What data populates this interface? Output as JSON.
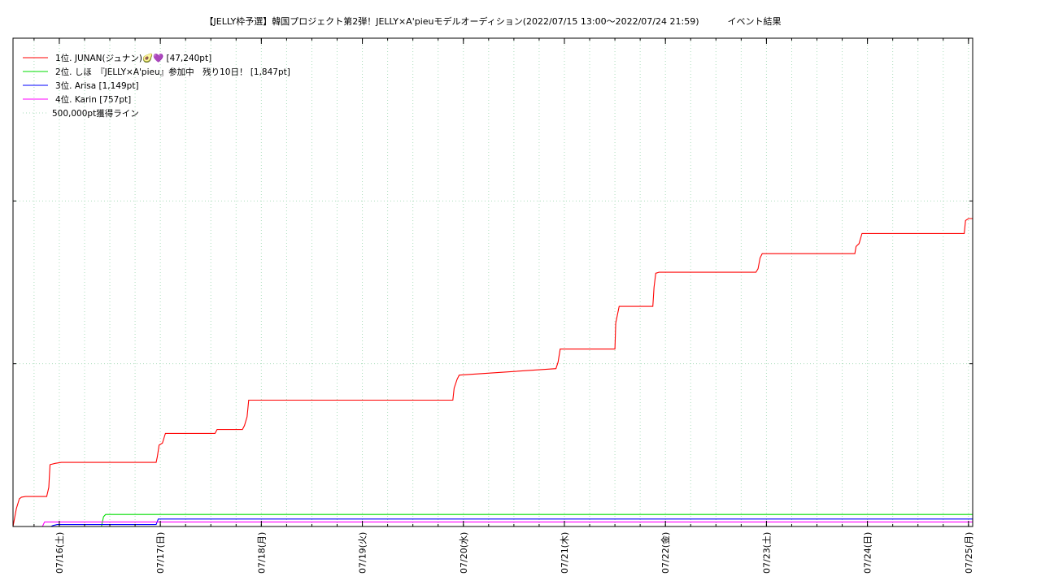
{
  "title": "【JELLY枠予選】韓国プロジェクト第2弾！JELLY×A'pieuモデルオーディション(2022/07/15 13:00〜2022/07/24 21:59)",
  "title_suffix": "イベント結果",
  "chart_data": {
    "type": "line",
    "x_unit": "hours since 2022/07/15 13:00",
    "xlim": [
      0,
      228
    ],
    "ylim": [
      0,
      150000
    ],
    "ytick_values": [
      50000,
      100000
    ],
    "x_ticks": [
      {
        "x": 11,
        "label": "07/16(土)"
      },
      {
        "x": 35,
        "label": "07/17(日)"
      },
      {
        "x": 59,
        "label": "07/18(月)"
      },
      {
        "x": 83,
        "label": "07/19(火)"
      },
      {
        "x": 107,
        "label": "07/20(水)"
      },
      {
        "x": 131,
        "label": "07/21(木)"
      },
      {
        "x": 155,
        "label": "07/22(金)"
      },
      {
        "x": 179,
        "label": "07/23(土)"
      },
      {
        "x": 203,
        "label": "07/24(日)"
      },
      {
        "x": 227,
        "label": "07/25(月)"
      }
    ],
    "grid": true,
    "legend_position": "top-left",
    "series": [
      {
        "name": "1位. JUNAN(ジュナン)🥑💜 [47,240pt]",
        "color": "#ff0000",
        "points": [
          [
            0,
            0
          ],
          [
            0.8,
            5500
          ],
          [
            1.5,
            8500
          ],
          [
            2,
            9000
          ],
          [
            3,
            9200
          ],
          [
            8,
            9200
          ],
          [
            8.5,
            12000
          ],
          [
            8.8,
            19000
          ],
          [
            10,
            19400
          ],
          [
            11.5,
            19700
          ],
          [
            34,
            19700
          ],
          [
            34.3,
            21500
          ],
          [
            34.7,
            25000
          ],
          [
            35.5,
            25600
          ],
          [
            36.2,
            28600
          ],
          [
            48,
            28600
          ],
          [
            48.5,
            29800
          ],
          [
            54.5,
            29800
          ],
          [
            55,
            31000
          ],
          [
            55.6,
            33700
          ],
          [
            56,
            38800
          ],
          [
            104.5,
            38800
          ],
          [
            104.8,
            42500
          ],
          [
            105.5,
            45200
          ],
          [
            106,
            46500
          ],
          [
            129,
            48500
          ],
          [
            129.5,
            50500
          ],
          [
            130,
            54500
          ],
          [
            143,
            54500
          ],
          [
            143.2,
            62500
          ],
          [
            144,
            67600
          ],
          [
            152,
            67600
          ],
          [
            152.3,
            73500
          ],
          [
            152.7,
            77800
          ],
          [
            153.5,
            78100
          ],
          [
            176.5,
            78100
          ],
          [
            177,
            79200
          ],
          [
            177.5,
            82500
          ],
          [
            178,
            83800
          ],
          [
            200,
            83800
          ],
          [
            200.3,
            86000
          ],
          [
            201,
            86900
          ],
          [
            201.7,
            90000
          ],
          [
            226,
            90000
          ],
          [
            226.3,
            94000
          ],
          [
            227,
            94600
          ],
          [
            228,
            94600
          ]
        ]
      },
      {
        "name": "2位. しほ　『JELLY×A'pieu』参加中　残り10日！ [1,847pt]",
        "color": "#00dd00",
        "points": [
          [
            0,
            0
          ],
          [
            21,
            0
          ],
          [
            21.5,
            3000
          ],
          [
            22,
            3700
          ],
          [
            228,
            3700
          ]
        ]
      },
      {
        "name": "3位. Arisa [1,149pt]",
        "color": "#0000ff",
        "points": [
          [
            0,
            0
          ],
          [
            9,
            0
          ],
          [
            9.5,
            300
          ],
          [
            10.5,
            600
          ],
          [
            34,
            600
          ],
          [
            34.5,
            2300
          ],
          [
            228,
            2300
          ]
        ]
      },
      {
        "name": "4位. Karin [757pt]",
        "color": "#ff00ff",
        "points": [
          [
            0,
            0
          ],
          [
            7,
            0
          ],
          [
            7.5,
            1400
          ],
          [
            228,
            1400
          ]
        ]
      }
    ],
    "reference_line": {
      "name": "500,000pt獲得ライン",
      "y": 500000,
      "color": "#aaddbb"
    }
  }
}
